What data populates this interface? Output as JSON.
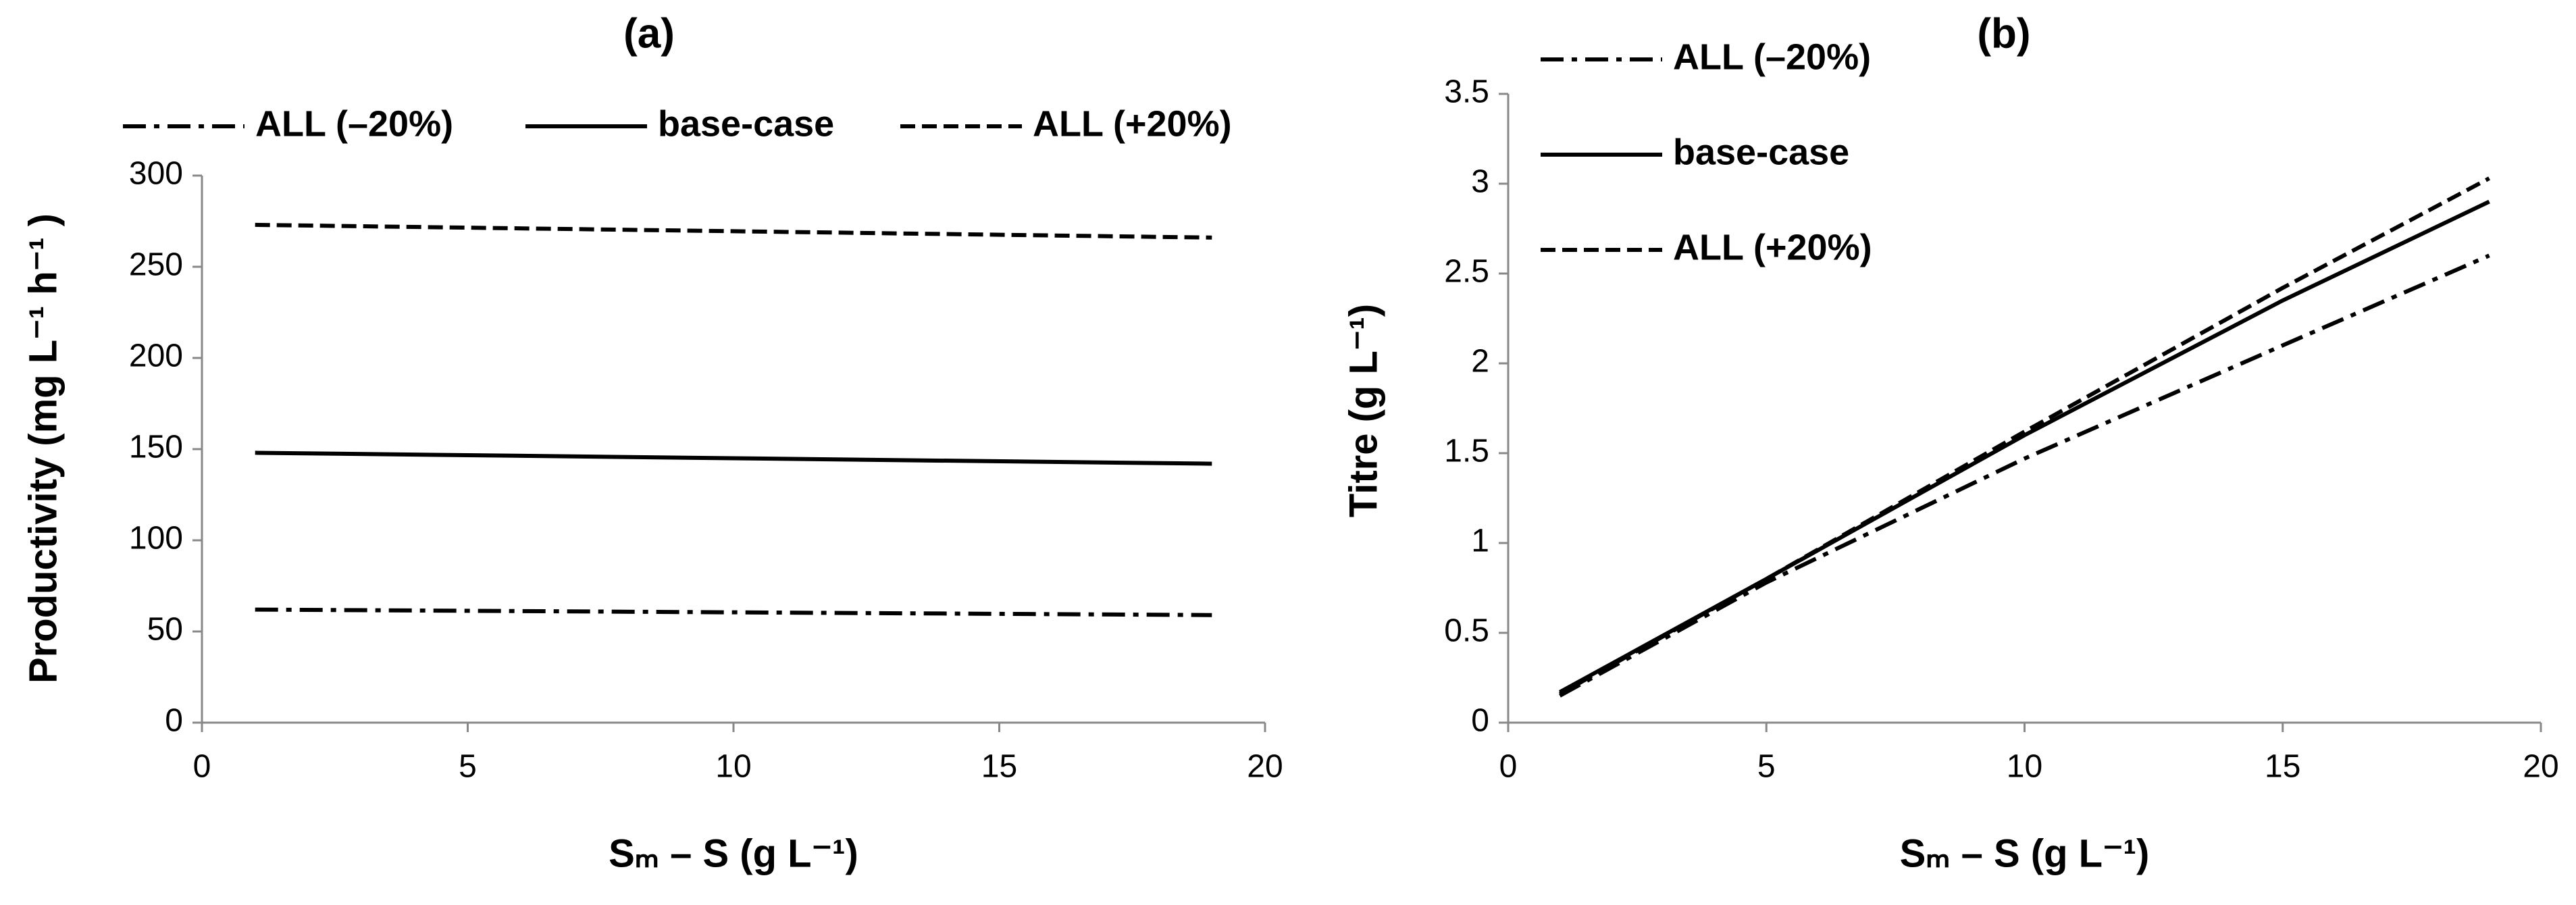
{
  "chart_data": [
    {
      "type": "line",
      "title": "(a)",
      "xlabel": "Sₘ – S (g L⁻¹)",
      "ylabel": "Productivity (mg L⁻¹ h⁻¹ )",
      "x": [
        1,
        19
      ],
      "xlim": [
        0,
        20
      ],
      "xticks": [
        0,
        5,
        10,
        15,
        20
      ],
      "ylim": [
        0,
        300
      ],
      "yticks": [
        0,
        50,
        100,
        150,
        200,
        250,
        300
      ],
      "legend": "top",
      "series": [
        {
          "name": "ALL (–20%)",
          "color": "#000000",
          "linestyle": "dashdot",
          "values": [
            62,
            59
          ]
        },
        {
          "name": "base-case",
          "color": "#000000",
          "linestyle": "solid",
          "values": [
            148,
            142
          ]
        },
        {
          "name": "ALL (+20%)",
          "color": "#000000",
          "linestyle": "dashed",
          "values": [
            273,
            266
          ]
        }
      ]
    },
    {
      "type": "line",
      "title": "(b)",
      "xlabel": "Sₘ – S (g L⁻¹)",
      "ylabel": "Titre (g L⁻¹)",
      "x": [
        1,
        5,
        10,
        15,
        19
      ],
      "xlim": [
        0,
        20
      ],
      "xticks": [
        0,
        5,
        10,
        15,
        20
      ],
      "ylim": [
        0,
        3.5
      ],
      "yticks": [
        0,
        0.5,
        1,
        1.5,
        2,
        2.5,
        3,
        3.5
      ],
      "legend": "top-left",
      "series": [
        {
          "name": "ALL (–20%)",
          "color": "#000000",
          "linestyle": "dashdot",
          "values": [
            0.15,
            0.78,
            1.47,
            2.1,
            2.6
          ]
        },
        {
          "name": "base-case",
          "color": "#000000",
          "linestyle": "solid",
          "values": [
            0.17,
            0.8,
            1.6,
            2.35,
            2.9
          ]
        },
        {
          "name": "ALL (+20%)",
          "color": "#000000",
          "linestyle": "dashed",
          "values": [
            0.16,
            0.8,
            1.62,
            2.42,
            3.03
          ]
        }
      ]
    }
  ]
}
